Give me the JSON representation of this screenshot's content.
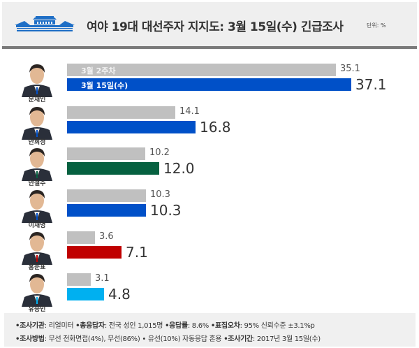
{
  "header": {
    "title": "여야 19대 대선주자 지지도: 3월 15일(수) 긴급조사",
    "unit": "단위: %",
    "logo_icon": "blue-house-building-icon"
  },
  "legend": {
    "prev_label": "3월 2주차",
    "cur_label": "3월 15일(수)"
  },
  "chart_data": {
    "type": "bar",
    "orientation": "horizontal",
    "title": "여야 19대 대선주자 지지도: 3월 15일(수) 긴급조사",
    "unit": "%",
    "categories": [
      "문재인",
      "안희정",
      "안철수",
      "이재명",
      "홍준표",
      "유승민"
    ],
    "series": [
      {
        "name": "3월 2주차",
        "color": "#c0c0c0",
        "values": [
          35.1,
          14.1,
          10.2,
          10.3,
          3.6,
          3.1
        ]
      },
      {
        "name": "3월 15일(수)",
        "colors": [
          "#0050c8",
          "#0050c8",
          "#066140",
          "#0050c8",
          "#c00000",
          "#00b0f0"
        ],
        "values": [
          37.1,
          16.8,
          12.0,
          10.3,
          7.1,
          4.8
        ]
      }
    ],
    "grid": false,
    "legend_position": "inside-bars"
  },
  "candidates": [
    {
      "name": "문재인",
      "prev": "35.1",
      "cur": "37.1",
      "prev_w": 385,
      "cur_w": 407,
      "color": "#0050c8"
    },
    {
      "name": "안희정",
      "prev": "14.1",
      "cur": "16.8",
      "prev_w": 155,
      "cur_w": 184,
      "color": "#0050c8"
    },
    {
      "name": "안철수",
      "prev": "10.2",
      "cur": "12.0",
      "prev_w": 112,
      "cur_w": 132,
      "color": "#066140"
    },
    {
      "name": "이재명",
      "prev": "10.3",
      "cur": "10.3",
      "prev_w": 113,
      "cur_w": 113,
      "color": "#0050c8"
    },
    {
      "name": "홍준표",
      "prev": "3.6",
      "cur": "7.1",
      "prev_w": 40,
      "cur_w": 78,
      "color": "#c00000"
    },
    {
      "name": "유승민",
      "prev": "3.1",
      "cur": "4.8",
      "prev_w": 34,
      "cur_w": 53,
      "color": "#00b0f0"
    }
  ],
  "footer": {
    "line1": [
      {
        "k": "•조사기관",
        "v": ": 리얼미터 "
      },
      {
        "k": "•총응답자",
        "v": ": 전국 성인 1,015명 "
      },
      {
        "k": "•응답률",
        "v": ": 8.6% "
      },
      {
        "k": "•표집오차",
        "v": ": 95% 신뢰수준 ±3.1%p"
      }
    ],
    "line2": [
      {
        "k": "•조사방법",
        "v": ": 무선 전화면접(4%), 무선(86%) • 유선(10%) 자동응답 혼용 "
      },
      {
        "k": "•조사기간",
        "v": ": 2017년 3월 15일(수)"
      }
    ]
  }
}
